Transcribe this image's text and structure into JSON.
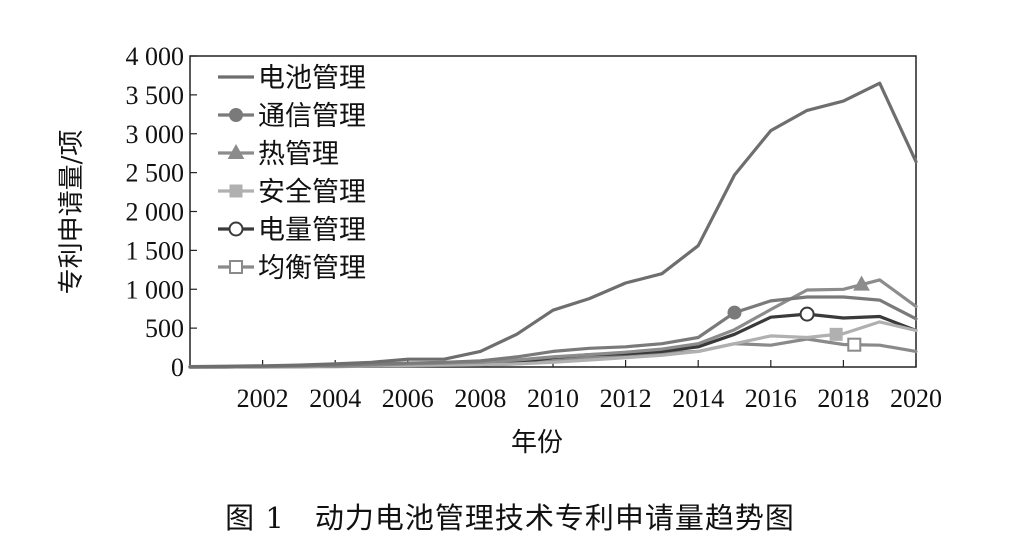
{
  "chart_data": {
    "type": "line",
    "ylabel": "专利申请量/项",
    "xlabel": "年份",
    "caption": "图 1　动力电池管理技术专利申请量趋势图",
    "xlim": [
      2000,
      2020
    ],
    "ylim": [
      0,
      4000
    ],
    "x_ticks": [
      2002,
      2004,
      2006,
      2008,
      2010,
      2012,
      2014,
      2016,
      2018,
      2020
    ],
    "y_ticks": [
      0,
      500,
      1000,
      1500,
      2000,
      2500,
      3000,
      3500,
      4000
    ],
    "y_tick_labels": [
      "0",
      "500",
      "1 000",
      "1 500",
      "2 000",
      "2 500",
      "3 000",
      "3 500",
      "4 000"
    ],
    "legend_position": "top-left",
    "series": [
      {
        "name": "电池管理",
        "color": "#6e6e6e",
        "marker": "none",
        "x": [
          2000,
          2001,
          2002,
          2003,
          2004,
          2005,
          2006,
          2007,
          2008,
          2009,
          2010,
          2011,
          2012,
          2013,
          2014,
          2015,
          2016,
          2017,
          2018,
          2019,
          2020
        ],
        "values": [
          5,
          10,
          15,
          25,
          40,
          60,
          100,
          100,
          200,
          420,
          730,
          880,
          1080,
          1200,
          1560,
          2470,
          3040,
          3300,
          3420,
          3650,
          2640
        ]
      },
      {
        "name": "通信管理",
        "color": "#7a7a7a",
        "marker": "circle-filled",
        "marker_x": 2015,
        "x": [
          2000,
          2001,
          2002,
          2003,
          2004,
          2005,
          2006,
          2007,
          2008,
          2009,
          2010,
          2011,
          2012,
          2013,
          2014,
          2015,
          2016,
          2017,
          2018,
          2019,
          2020
        ],
        "values": [
          0,
          5,
          10,
          15,
          25,
          40,
          50,
          60,
          80,
          130,
          200,
          240,
          260,
          300,
          380,
          700,
          850,
          900,
          900,
          860,
          620
        ]
      },
      {
        "name": "热管理",
        "color": "#8c8c8c",
        "marker": "triangle-filled",
        "marker_x": 2018.5,
        "x": [
          2000,
          2001,
          2002,
          2003,
          2004,
          2005,
          2006,
          2007,
          2008,
          2009,
          2010,
          2011,
          2012,
          2013,
          2014,
          2015,
          2016,
          2017,
          2018,
          2019,
          2020
        ],
        "values": [
          0,
          5,
          5,
          10,
          15,
          25,
          40,
          50,
          60,
          90,
          130,
          160,
          190,
          230,
          300,
          480,
          740,
          990,
          1000,
          1120,
          780
        ]
      },
      {
        "name": "安全管理",
        "color": "#b0b0b0",
        "marker": "square-filled",
        "marker_x": 2017.8,
        "x": [
          2000,
          2001,
          2002,
          2003,
          2004,
          2005,
          2006,
          2007,
          2008,
          2009,
          2010,
          2011,
          2012,
          2013,
          2014,
          2015,
          2016,
          2017,
          2018,
          2019,
          2020
        ],
        "values": [
          0,
          0,
          5,
          5,
          10,
          15,
          20,
          25,
          30,
          40,
          60,
          90,
          120,
          150,
          200,
          300,
          400,
          380,
          430,
          580,
          470
        ]
      },
      {
        "name": "电量管理",
        "color": "#3a3a3a",
        "marker": "circle-open",
        "marker_x": 2017,
        "x": [
          2000,
          2001,
          2002,
          2003,
          2004,
          2005,
          2006,
          2007,
          2008,
          2009,
          2010,
          2011,
          2012,
          2013,
          2014,
          2015,
          2016,
          2017,
          2018,
          2019,
          2020
        ],
        "values": [
          0,
          0,
          5,
          5,
          10,
          15,
          20,
          20,
          25,
          60,
          120,
          160,
          170,
          200,
          260,
          420,
          640,
          680,
          630,
          650,
          470
        ]
      },
      {
        "name": "均衡管理",
        "color": "#8a8a8a",
        "marker": "square-open",
        "marker_x": 2018.3,
        "x": [
          2000,
          2001,
          2002,
          2003,
          2004,
          2005,
          2006,
          2007,
          2008,
          2009,
          2010,
          2011,
          2012,
          2013,
          2014,
          2015,
          2016,
          2017,
          2018,
          2019,
          2020
        ],
        "values": [
          0,
          0,
          0,
          5,
          5,
          10,
          15,
          20,
          25,
          40,
          80,
          120,
          160,
          180,
          200,
          300,
          280,
          360,
          290,
          280,
          200
        ]
      }
    ]
  }
}
